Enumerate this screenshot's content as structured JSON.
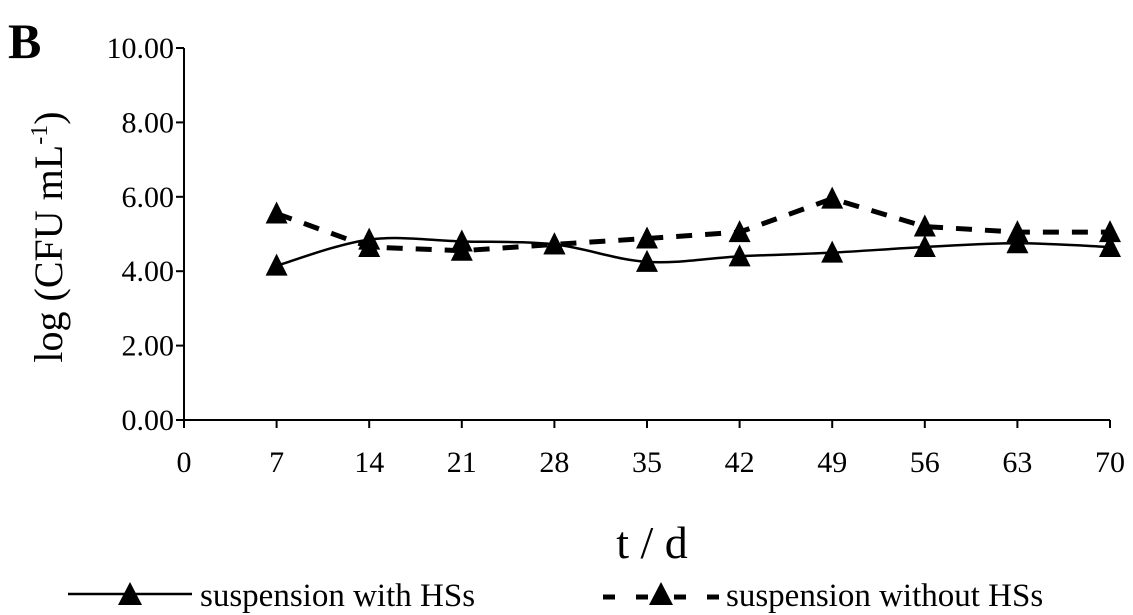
{
  "panel_label": "B",
  "chart_data": {
    "type": "line",
    "panel": "B",
    "xlabel": "t / d",
    "ylabel_main": "log (CFU mL",
    "ylabel_sup": "-1",
    "ylabel_close": ")",
    "x_ticks": [
      0,
      7,
      14,
      21,
      28,
      35,
      42,
      49,
      56,
      63,
      70
    ],
    "x_tick_labels": [
      "0",
      "7",
      "14",
      "21",
      "28",
      "35",
      "42",
      "49",
      "56",
      "63",
      "70"
    ],
    "y_ticks": [
      0,
      2,
      4,
      6,
      8,
      10
    ],
    "y_tick_labels": [
      "0.00",
      "2.00",
      "4.00",
      "6.00",
      "8.00",
      "10.00"
    ],
    "xlim": [
      0,
      70
    ],
    "ylim": [
      0,
      10
    ],
    "grid": false,
    "legend_position": "bottom",
    "x": [
      7,
      14,
      21,
      28,
      35,
      42,
      49,
      56,
      63,
      70
    ],
    "series": [
      {
        "name": "suspension with HSs",
        "line_style": "solid",
        "marker": "triangle",
        "smooth": true,
        "values": [
          4.15,
          4.85,
          4.8,
          4.72,
          4.25,
          4.4,
          4.5,
          4.65,
          4.75,
          4.65
        ]
      },
      {
        "name": "suspension without HSs",
        "line_style": "dashed",
        "marker": "triangle",
        "smooth": false,
        "values": [
          5.55,
          4.65,
          4.55,
          4.72,
          4.88,
          5.05,
          5.95,
          5.2,
          5.05,
          5.05
        ]
      }
    ],
    "colors": {
      "line": "#000000",
      "marker": "#000000",
      "axis": "#000000"
    }
  }
}
